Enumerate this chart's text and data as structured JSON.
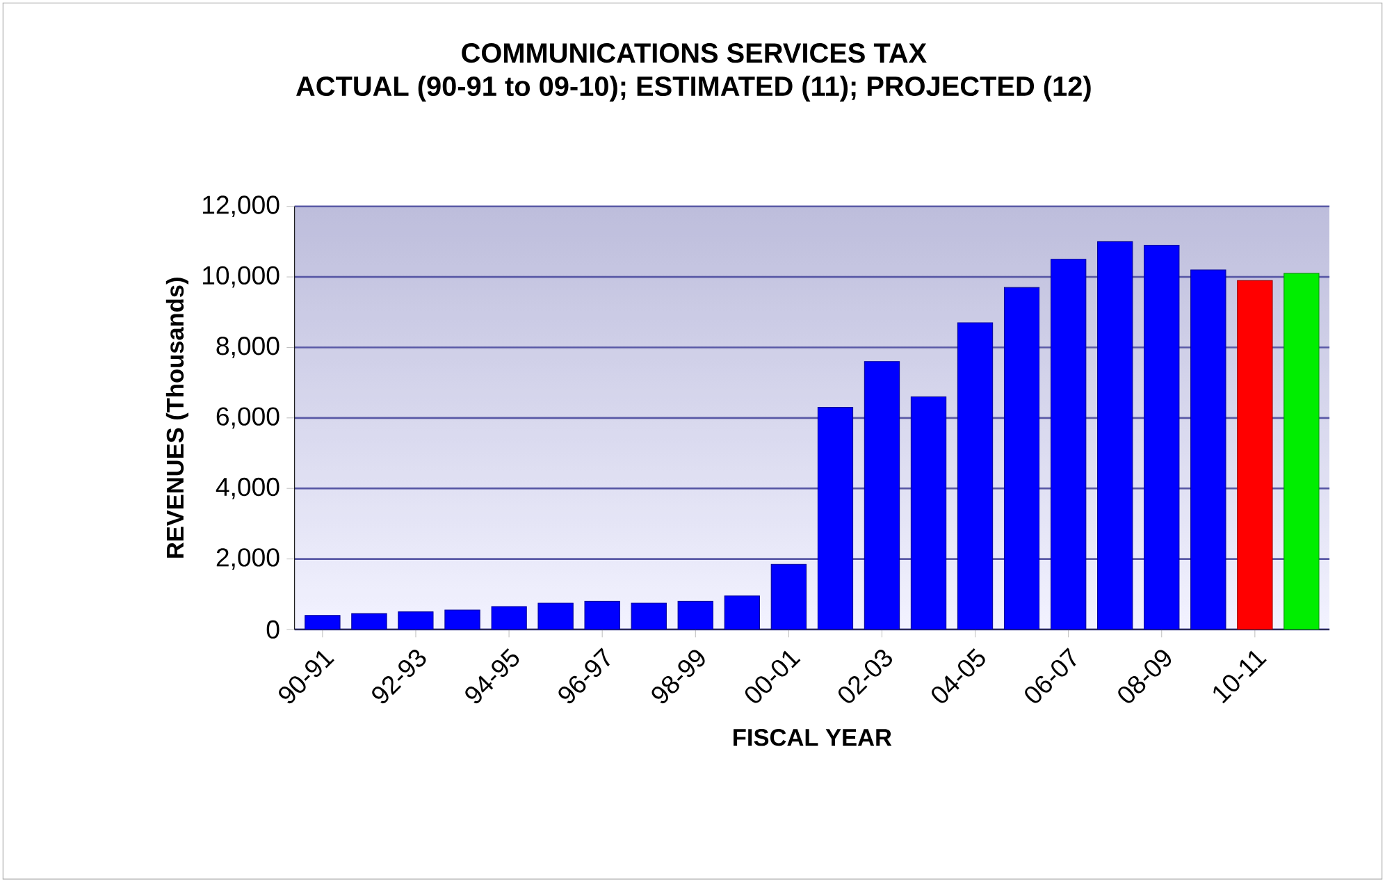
{
  "chart_data": {
    "type": "bar",
    "title": "COMMUNICATIONS SERVICES TAX",
    "subtitle": "ACTUAL (90-91 to 09-10); ESTIMATED (11); PROJECTED (12)",
    "xlabel": "FISCAL YEAR",
    "ylabel": "REVENUES (Thousands)",
    "categories": [
      "90-91",
      null,
      "92-93",
      null,
      "94-95",
      null,
      "96-97",
      null,
      "98-99",
      null,
      "00-01",
      null,
      "02-03",
      null,
      "04-05",
      null,
      "06-07",
      null,
      "08-09",
      null,
      "10-11",
      null
    ],
    "values": [
      400,
      450,
      500,
      550,
      650,
      750,
      800,
      750,
      800,
      950,
      1850,
      6300,
      7600,
      6600,
      8700,
      9700,
      10500,
      11000,
      10900,
      10200,
      9900,
      10100
    ],
    "colors": [
      "#0000ff",
      "#0000ff",
      "#0000ff",
      "#0000ff",
      "#0000ff",
      "#0000ff",
      "#0000ff",
      "#0000ff",
      "#0000ff",
      "#0000ff",
      "#0000ff",
      "#0000ff",
      "#0000ff",
      "#0000ff",
      "#0000ff",
      "#0000ff",
      "#0000ff",
      "#0000ff",
      "#0000ff",
      "#0000ff",
      "#ff0000",
      "#00ee00"
    ],
    "ylim": [
      0,
      12000
    ],
    "yticks": [
      {
        "value": 0,
        "label": "0"
      },
      {
        "value": 2000,
        "label": "2,000"
      },
      {
        "value": 4000,
        "label": "4,000"
      },
      {
        "value": 6000,
        "label": "6,000"
      },
      {
        "value": 8000,
        "label": "8,000"
      },
      {
        "value": 10000,
        "label": "10,000"
      },
      {
        "value": 12000,
        "label": "12,000"
      }
    ],
    "grid": "y"
  }
}
